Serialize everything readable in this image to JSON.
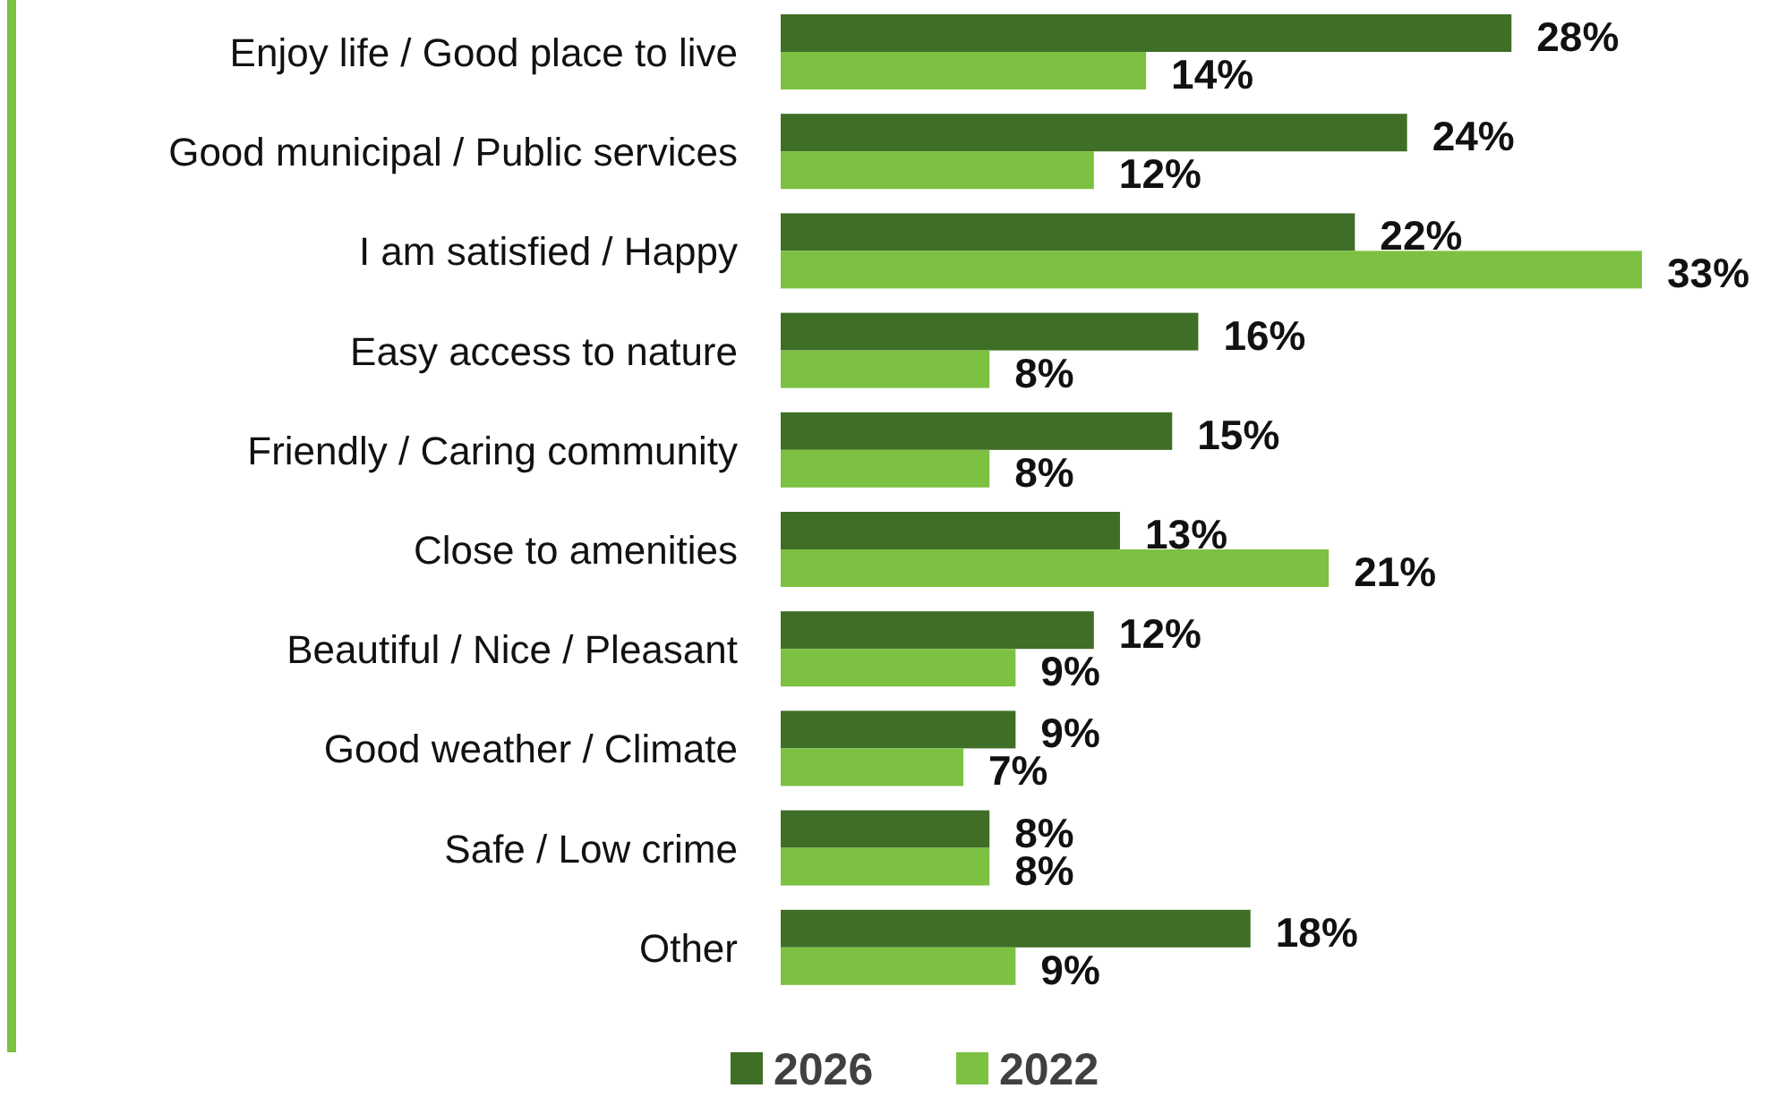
{
  "chart_data": {
    "type": "bar",
    "orientation": "horizontal",
    "legend": "bottom",
    "categories": [
      "Enjoy life / Good place to live",
      "Good municipal / Public services",
      "I am satisfied / Happy",
      "Easy access to nature",
      "Friendly / Caring community",
      "Close to amenities",
      "Beautiful / Nice / Pleasant",
      "Good weather / Climate",
      "Safe / Low crime",
      "Other"
    ],
    "series": [
      {
        "name": "2026",
        "color": "#3f6e26",
        "values": [
          28,
          24,
          22,
          16,
          15,
          13,
          12,
          9,
          8,
          18
        ],
        "value_labels": [
          "28%",
          "24%",
          "22%",
          "16%",
          "15%",
          "13%",
          "12%",
          "9%",
          "8%",
          "18%"
        ]
      },
      {
        "name": "2022",
        "color": "#7cc142",
        "values": [
          14,
          12,
          33,
          8,
          8,
          21,
          9,
          7,
          8,
          9
        ],
        "value_labels": [
          "14%",
          "12%",
          "33%",
          "8%",
          "8%",
          "21%",
          "9%",
          "7%",
          "8%",
          "9%"
        ]
      }
    ]
  }
}
